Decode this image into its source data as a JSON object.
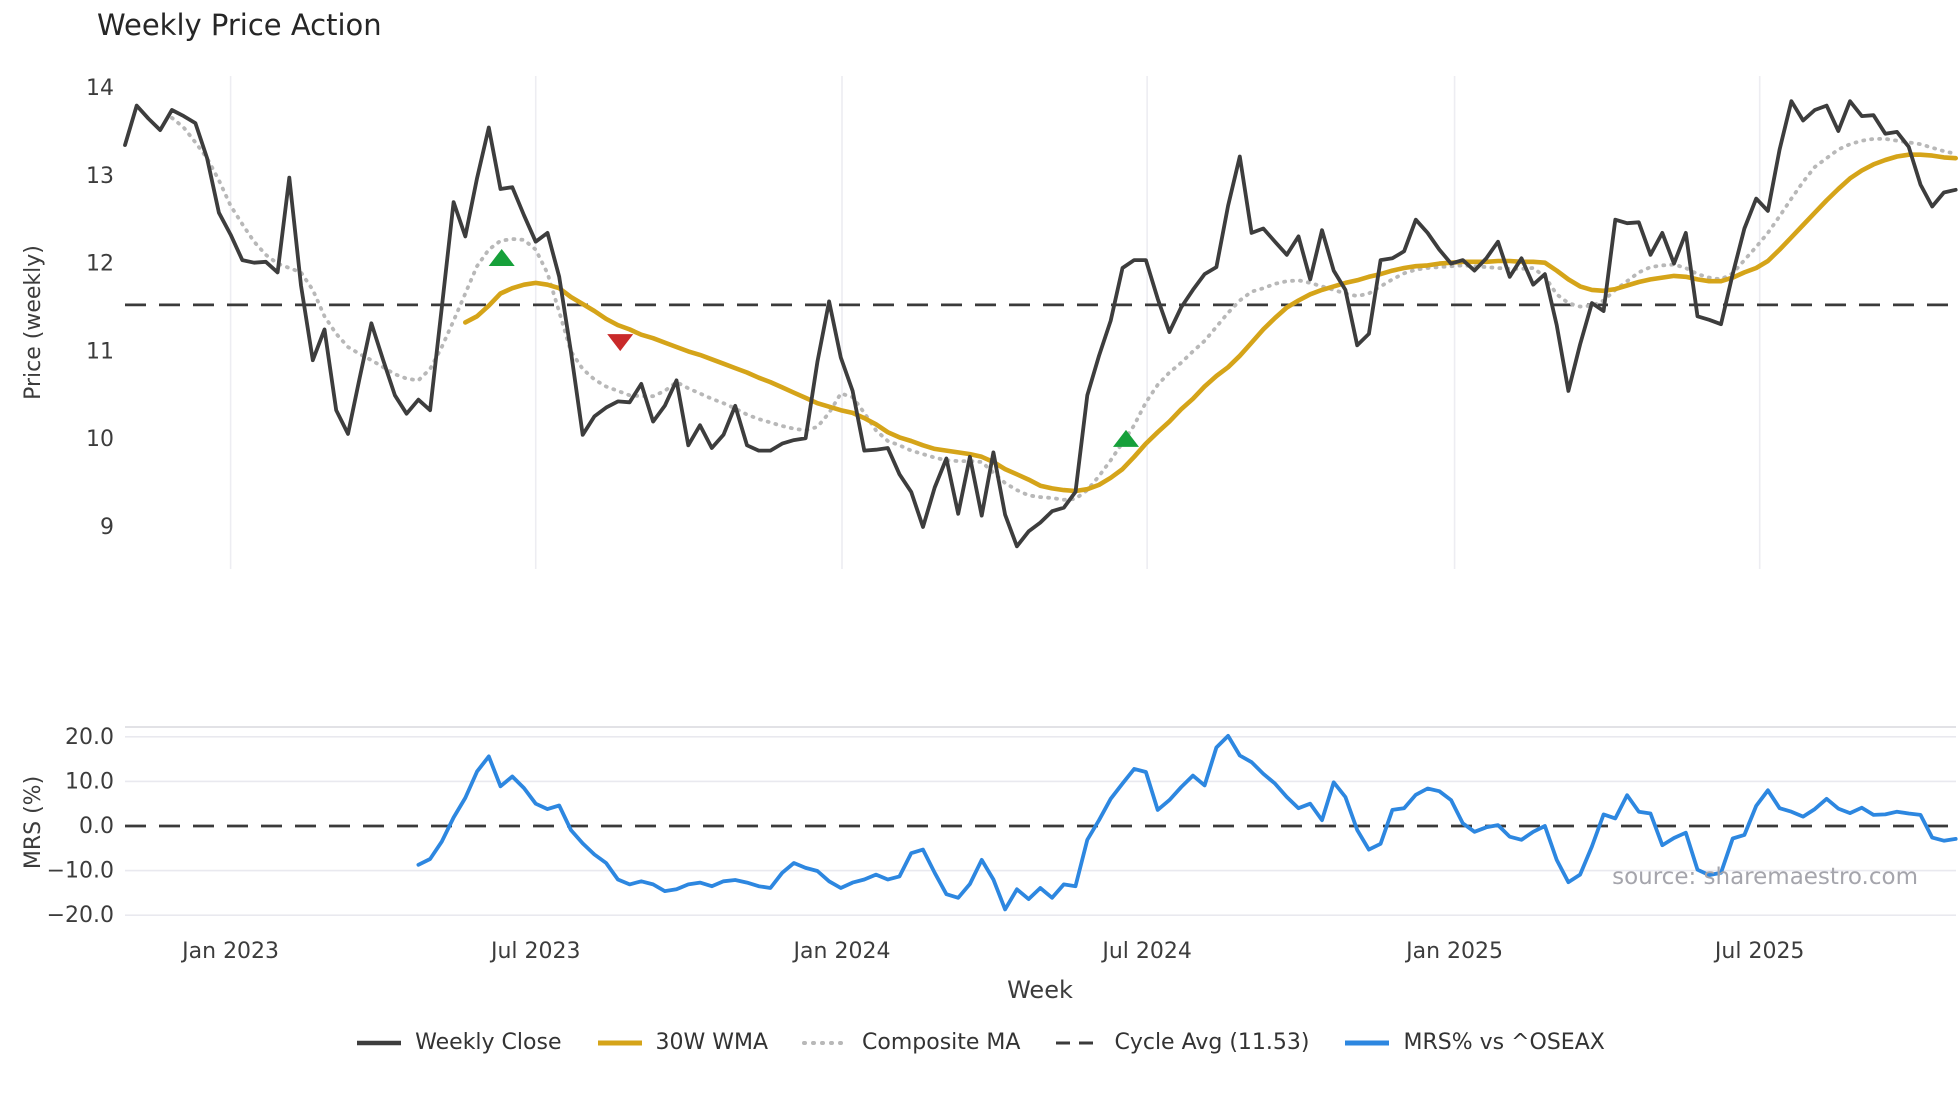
{
  "title": "Weekly Price Action",
  "source": "source: sharemaestro.com",
  "colors": {
    "weekly_close": "#3d3d3d",
    "wma": "#d5a419",
    "composite": "#b8b8b8",
    "cycle_avg": "#3a3a3a",
    "mrs": "#2d87e0",
    "marker_up": "#16a03a",
    "marker_down": "#c92a2a",
    "grid_v": "#ededf2",
    "grid_h": "#e9e9ef",
    "panel_border": "#d9d9de",
    "tick": "#3c3c3c",
    "title": "#262626"
  },
  "legend": {
    "items": [
      {
        "label": "Weekly Close",
        "style": "solid",
        "color_key": "weekly_close",
        "width": 4.5
      },
      {
        "label": "30W WMA",
        "style": "solid",
        "color_key": "wma",
        "width": 5
      },
      {
        "label": "Composite MA",
        "style": "dotted",
        "color_key": "composite",
        "width": 4
      },
      {
        "label": "Cycle Avg (11.53)",
        "style": "dashed",
        "color_key": "cycle_avg",
        "width": 3
      },
      {
        "label": "MRS% vs ^OSEAX",
        "style": "solid",
        "color_key": "mrs",
        "width": 5
      }
    ]
  },
  "axes": {
    "week_label": "Week",
    "price_label": "Price (weekly)",
    "mrs_label": "MRS (%)"
  },
  "chart_data": {
    "type": "line",
    "x_unit": "week_index",
    "n_weeks": 157,
    "x_ticks": [
      {
        "label": "Jan 2023",
        "week": 9
      },
      {
        "label": "Jul 2023",
        "week": 35
      },
      {
        "label": "Jan 2024",
        "week": 61.1
      },
      {
        "label": "Jul 2024",
        "week": 87.1
      },
      {
        "label": "Jan 2025",
        "week": 113.3
      },
      {
        "label": "Jul 2025",
        "week": 139.3
      }
    ],
    "price_panel": {
      "ylabel": "Price (weekly)",
      "ylim": [
        8.52,
        14.14
      ],
      "y_ticks": [
        14,
        13,
        12,
        11,
        10,
        9
      ],
      "cycle_avg": 11.53,
      "grid": "vertical-only",
      "markers": [
        {
          "week": 32.1,
          "value": 12.07,
          "dir": "up"
        },
        {
          "week": 42.2,
          "value": 11.1,
          "dir": "down"
        },
        {
          "week": 85.3,
          "value": 10.01,
          "dir": "up"
        }
      ],
      "series": [
        {
          "name": "Weekly Close",
          "color_key": "weekly_close",
          "values": [
            13.35,
            13.8,
            13.65,
            13.52,
            13.75,
            13.68,
            13.6,
            13.2,
            12.58,
            12.33,
            12.04,
            12.01,
            12.02,
            11.9,
            12.98,
            11.75,
            10.9,
            11.25,
            10.33,
            10.06,
            10.7,
            11.32,
            10.9,
            10.5,
            10.29,
            10.45,
            10.33,
            11.5,
            12.7,
            12.31,
            12.97,
            13.55,
            12.85,
            12.87,
            12.55,
            12.25,
            12.35,
            11.85,
            11.0,
            10.05,
            10.26,
            10.36,
            10.43,
            10.42,
            10.63,
            10.2,
            10.38,
            10.67,
            9.93,
            10.16,
            9.9,
            10.05,
            10.38,
            9.93,
            9.87,
            9.87,
            9.95,
            9.99,
            10.01,
            10.88,
            11.57,
            10.93,
            10.55,
            9.87,
            9.88,
            9.9,
            9.6,
            9.4,
            9.0,
            9.45,
            9.78,
            9.15,
            9.8,
            9.13,
            9.85,
            9.14,
            8.78,
            8.95,
            9.05,
            9.18,
            9.22,
            9.4,
            10.5,
            10.95,
            11.35,
            11.95,
            12.04,
            12.04,
            11.6,
            11.22,
            11.5,
            11.7,
            11.88,
            11.96,
            12.66,
            13.22,
            12.35,
            12.4,
            12.25,
            12.1,
            12.31,
            11.82,
            12.38,
            11.92,
            11.7,
            11.07,
            11.2,
            12.04,
            12.06,
            12.14,
            12.5,
            12.35,
            12.16,
            12.0,
            12.04,
            11.92,
            12.06,
            12.25,
            11.85,
            12.06,
            11.76,
            11.88,
            11.3,
            10.55,
            11.08,
            11.55,
            11.46,
            12.5,
            12.46,
            12.47,
            12.1,
            12.35,
            12.0,
            12.35,
            11.4,
            11.36,
            11.31,
            11.88,
            12.4,
            12.74,
            12.6,
            13.3,
            13.85,
            13.63,
            13.75,
            13.8,
            13.51,
            13.85,
            13.68,
            13.69,
            13.48,
            13.5,
            13.33,
            12.9,
            12.65,
            12.81,
            12.84
          ]
        },
        {
          "name": "30W WMA",
          "color_key": "wma",
          "values": [
            null,
            null,
            null,
            null,
            null,
            null,
            null,
            null,
            null,
            null,
            null,
            null,
            null,
            null,
            null,
            null,
            null,
            null,
            null,
            null,
            null,
            null,
            null,
            null,
            null,
            null,
            null,
            null,
            null,
            11.33,
            11.4,
            11.52,
            11.66,
            11.72,
            11.76,
            11.78,
            11.76,
            11.72,
            11.62,
            11.54,
            11.46,
            11.37,
            11.3,
            11.25,
            11.19,
            11.15,
            11.1,
            11.05,
            11.0,
            10.96,
            10.91,
            10.86,
            10.81,
            10.76,
            10.7,
            10.65,
            10.59,
            10.53,
            10.47,
            10.41,
            10.37,
            10.33,
            10.3,
            10.24,
            10.17,
            10.08,
            10.02,
            9.98,
            9.93,
            9.89,
            9.87,
            9.85,
            9.83,
            9.8,
            9.74,
            9.66,
            9.6,
            9.54,
            9.47,
            9.44,
            9.42,
            9.41,
            9.43,
            9.48,
            9.56,
            9.66,
            9.8,
            9.95,
            10.08,
            10.2,
            10.34,
            10.46,
            10.6,
            10.72,
            10.82,
            10.95,
            11.1,
            11.25,
            11.38,
            11.5,
            11.58,
            11.65,
            11.7,
            11.74,
            11.78,
            11.81,
            11.85,
            11.88,
            11.92,
            11.95,
            11.97,
            11.98,
            12.0,
            12.01,
            12.02,
            12.02,
            12.02,
            12.03,
            12.03,
            12.02,
            12.02,
            12.01,
            11.92,
            11.82,
            11.74,
            11.7,
            11.69,
            11.71,
            11.75,
            11.79,
            11.82,
            11.84,
            11.86,
            11.85,
            11.82,
            11.8,
            11.8,
            11.84,
            11.9,
            11.95,
            12.03,
            12.16,
            12.3,
            12.44,
            12.58,
            12.72,
            12.85,
            12.97,
            13.06,
            13.13,
            13.18,
            13.22,
            13.24,
            13.24,
            13.23,
            13.21,
            13.2
          ]
        },
        {
          "name": "Composite MA",
          "color_key": "composite",
          "values": [
            null,
            null,
            null,
            null,
            13.66,
            13.55,
            13.38,
            13.2,
            12.95,
            12.66,
            12.45,
            12.25,
            12.1,
            12.0,
            11.95,
            11.9,
            11.7,
            11.4,
            11.2,
            11.05,
            10.97,
            10.9,
            10.82,
            10.74,
            10.69,
            10.67,
            10.8,
            11.05,
            11.35,
            11.66,
            11.97,
            12.16,
            12.26,
            12.28,
            12.27,
            12.16,
            11.89,
            11.45,
            11.0,
            10.8,
            10.68,
            10.6,
            10.55,
            10.5,
            10.49,
            10.49,
            10.55,
            10.65,
            10.58,
            10.52,
            10.46,
            10.41,
            10.35,
            10.28,
            10.23,
            10.19,
            10.15,
            10.12,
            10.1,
            10.14,
            10.3,
            10.52,
            10.48,
            10.3,
            10.1,
            9.98,
            9.93,
            9.87,
            9.83,
            9.79,
            9.76,
            9.75,
            9.75,
            9.74,
            9.62,
            9.5,
            9.42,
            9.36,
            9.34,
            9.33,
            9.31,
            9.32,
            9.42,
            9.58,
            9.76,
            9.96,
            10.16,
            10.42,
            10.62,
            10.76,
            10.87,
            11.0,
            11.12,
            11.28,
            11.44,
            11.58,
            11.68,
            11.72,
            11.77,
            11.8,
            11.81,
            11.78,
            11.74,
            11.7,
            11.66,
            11.63,
            11.66,
            11.74,
            11.82,
            11.89,
            11.93,
            11.95,
            11.96,
            11.97,
            11.98,
            11.97,
            11.96,
            11.95,
            11.94,
            11.94,
            11.95,
            11.85,
            11.65,
            11.55,
            11.51,
            11.52,
            11.58,
            11.7,
            11.8,
            11.9,
            11.96,
            11.98,
            11.99,
            11.95,
            11.88,
            11.84,
            11.82,
            11.89,
            12.04,
            12.19,
            12.35,
            12.54,
            12.74,
            12.93,
            13.1,
            13.2,
            13.3,
            13.36,
            13.4,
            13.42,
            13.42,
            13.4,
            13.38,
            13.36,
            13.32,
            13.28,
            13.25
          ]
        }
      ]
    },
    "mrs_panel": {
      "ylabel": "MRS (%)",
      "ylim": [
        -20.65,
        22.15
      ],
      "y_ticks": [
        {
          "label": "20.0",
          "value": 20
        },
        {
          "label": "10.0",
          "value": 10
        },
        {
          "label": "0.0",
          "value": 0
        },
        {
          "label": "−10.0",
          "value": -10
        },
        {
          "label": "−20.0",
          "value": -20
        }
      ],
      "zero_line": 0,
      "grid": "horizontal-only",
      "series": [
        {
          "name": "MRS% vs ^OSEAX",
          "color_key": "mrs",
          "values": [
            null,
            null,
            null,
            null,
            null,
            null,
            null,
            null,
            null,
            null,
            null,
            null,
            null,
            null,
            null,
            null,
            null,
            null,
            null,
            null,
            null,
            null,
            null,
            null,
            null,
            -8.7,
            -7.4,
            -3.5,
            1.9,
            6.3,
            12.2,
            15.6,
            8.9,
            11.1,
            8.5,
            5.0,
            3.8,
            4.6,
            -0.9,
            -3.9,
            -6.4,
            -8.3,
            -12.0,
            -13.1,
            -12.4,
            -13.1,
            -14.6,
            -14.2,
            -13.1,
            -12.7,
            -13.5,
            -12.4,
            -12.1,
            -12.7,
            -13.5,
            -13.9,
            -10.5,
            -8.3,
            -9.4,
            -10.1,
            -12.4,
            -13.9,
            -12.7,
            -12.0,
            -10.9,
            -12.0,
            -11.3,
            -6.1,
            -5.3,
            -10.5,
            -15.3,
            -16.1,
            -13.0,
            -7.6,
            -12.0,
            -18.7,
            -14.2,
            -16.4,
            -13.9,
            -16.1,
            -13.1,
            -13.5,
            -3.1,
            1.3,
            6.1,
            9.5,
            12.8,
            12.1,
            3.6,
            5.8,
            8.7,
            11.3,
            9.1,
            17.6,
            20.2,
            15.8,
            14.3,
            11.7,
            9.5,
            6.5,
            4.0,
            5.0,
            1.3,
            9.8,
            6.5,
            -0.9,
            -5.3,
            -4.0,
            3.6,
            4.0,
            7.0,
            8.4,
            7.8,
            5.8,
            0.6,
            -1.3,
            -0.3,
            0.2,
            -2.4,
            -3.1,
            -1.3,
            0.0,
            -7.6,
            -12.6,
            -10.9,
            -4.6,
            2.6,
            1.7,
            6.9,
            3.2,
            2.8,
            -4.3,
            -2.7,
            -1.5,
            -9.8,
            -11.0,
            -10.5,
            -2.8,
            -2.0,
            4.5,
            8.0,
            4.0,
            3.2,
            2.1,
            3.8,
            6.1,
            3.9,
            2.9,
            4.1,
            2.5,
            2.6,
            3.2,
            2.8,
            2.5,
            -2.6,
            -3.3,
            -2.9
          ]
        }
      ]
    }
  }
}
